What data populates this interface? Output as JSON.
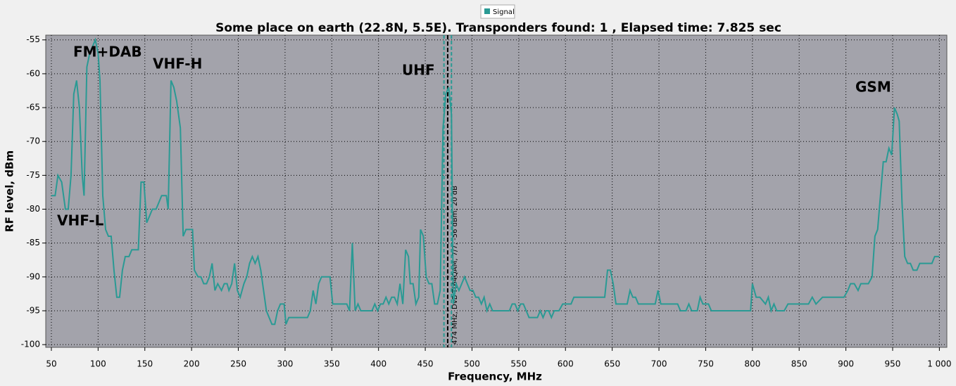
{
  "chart_data": {
    "type": "line",
    "title": "Some place on earth  (22.8N, 5.5E). Transponders found: 1 , Elapsed time: 7.825 sec",
    "x_label": "Frequency, MHz",
    "y_label": "RF level, dBm",
    "xlim": [
      44,
      1008
    ],
    "ylim": [
      -100.4,
      -54.3
    ],
    "xticks": [
      50,
      100,
      150,
      200,
      250,
      300,
      350,
      400,
      450,
      500,
      550,
      600,
      650,
      700,
      750,
      800,
      850,
      900,
      950,
      {
        "value": 1000,
        "label": "1 000"
      }
    ],
    "yticks": [
      -55,
      -60,
      -65,
      -70,
      -75,
      -80,
      -85,
      -90,
      -95,
      -100
    ],
    "grid": true,
    "legend": "top",
    "x": [
      50,
      54,
      57,
      61,
      65,
      68,
      71,
      74,
      77,
      80,
      83,
      85,
      88,
      91,
      94,
      97,
      100,
      102,
      105,
      108,
      111,
      114,
      117,
      120,
      123,
      126,
      129,
      133,
      136,
      139,
      143,
      146,
      149,
      152,
      155,
      158,
      162,
      165,
      168,
      173,
      175,
      178,
      181,
      184,
      188,
      191,
      194,
      197,
      201,
      203,
      207,
      210,
      213,
      216,
      219,
      222,
      225,
      228,
      232,
      235,
      238,
      240,
      243,
      246,
      249,
      252,
      256,
      259,
      262,
      265,
      268,
      271,
      274,
      277,
      280,
      283,
      286,
      289,
      292,
      295,
      299,
      301,
      304,
      308,
      311,
      315,
      320,
      324,
      327,
      330,
      333,
      336,
      339,
      342,
      345,
      348,
      351,
      355,
      359,
      363,
      366,
      369,
      372,
      375,
      378,
      381,
      384,
      387,
      390,
      393,
      396,
      399,
      402,
      405,
      408,
      411,
      414,
      417,
      420,
      423,
      426,
      429,
      432,
      434,
      437,
      440,
      443,
      445,
      448,
      451,
      454,
      457,
      460,
      463,
      466,
      469,
      472,
      475,
      478,
      480,
      483,
      486,
      489,
      492,
      495,
      498,
      501,
      504,
      507,
      510,
      513,
      516,
      519,
      522,
      525,
      528,
      531,
      534,
      537,
      540,
      543,
      546,
      549,
      552,
      555,
      558,
      561,
      564,
      567,
      570,
      573,
      576,
      579,
      582,
      585,
      588,
      590,
      593,
      597,
      601,
      606,
      609,
      612,
      618,
      624,
      630,
      636,
      642,
      645,
      648,
      651,
      654,
      657,
      661,
      666,
      669,
      672,
      675,
      678,
      681,
      684,
      687,
      690,
      693,
      696,
      699,
      702,
      705,
      708,
      711,
      714,
      717,
      720,
      723,
      726,
      729,
      732,
      735,
      738,
      741,
      744,
      747,
      750,
      753,
      756,
      759,
      798,
      800,
      804,
      808,
      814,
      817,
      820,
      823,
      826,
      830,
      834,
      838,
      845,
      853,
      860,
      864,
      868,
      875,
      883,
      890,
      898,
      902,
      905,
      909,
      913,
      916,
      924,
      928,
      931,
      934,
      937,
      940,
      943,
      946,
      949,
      952,
      955,
      957,
      960,
      963,
      966,
      969,
      972,
      976,
      979,
      982,
      986,
      992,
      995,
      1000
    ],
    "series": [
      {
        "name": "Signal",
        "color": "#2a9a94",
        "values": [
          -78,
          -78,
          -75,
          -76,
          -80,
          -80,
          -75,
          -63,
          -61,
          -65,
          -75,
          -78,
          -59,
          -57,
          -56,
          -55,
          -57,
          -61,
          -78,
          -83,
          -84,
          -84,
          -89,
          -93,
          -93,
          -89,
          -87,
          -87,
          -86,
          -86,
          -86,
          -76,
          -76,
          -82,
          -81,
          -80,
          -80,
          -79,
          -78,
          -78,
          -80,
          -61,
          -62,
          -64,
          -68,
          -84,
          -83,
          -83,
          -83,
          -89,
          -90,
          -90,
          -91,
          -91,
          -90,
          -88,
          -92,
          -91,
          -92,
          -91,
          -91,
          -92,
          -91,
          -88,
          -92,
          -93,
          -91,
          -90,
          -88,
          -87,
          -88,
          -87,
          -89,
          -92,
          -95,
          -96,
          -97,
          -97,
          -95,
          -94,
          -94,
          -97,
          -96,
          -96,
          -96,
          -96,
          -96,
          -96,
          -95,
          -92,
          -94,
          -91,
          -90,
          -90,
          -90,
          -90,
          -94,
          -94,
          -94,
          -94,
          -94,
          -95,
          -85,
          -95,
          -94,
          -95,
          -95,
          -95,
          -95,
          -95,
          -94,
          -95,
          -94,
          -94,
          -93,
          -94,
          -93,
          -93,
          -94,
          -91,
          -94,
          -86,
          -87,
          -91,
          -91,
          -94,
          -93,
          -83,
          -84,
          -90,
          -91,
          -91,
          -94,
          -94,
          -92,
          -68,
          -63,
          -62,
          -66,
          -94,
          -91,
          -92,
          -91,
          -90,
          -91,
          -92,
          -92,
          -93,
          -93,
          -94,
          -93,
          -95,
          -94,
          -95,
          -95,
          -95,
          -95,
          -95,
          -95,
          -95,
          -94,
          -94,
          -95,
          -94,
          -94,
          -95,
          -96,
          -96,
          -96,
          -96,
          -95,
          -96,
          -95,
          -95,
          -96,
          -95,
          -95,
          -95,
          -94,
          -94,
          -94,
          -93,
          -93,
          -93,
          -93,
          -93,
          -93,
          -93,
          -89,
          -89,
          -91,
          -94,
          -94,
          -94,
          -94,
          -92,
          -93,
          -93,
          -94,
          -94,
          -94,
          -94,
          -94,
          -94,
          -94,
          -92,
          -94,
          -94,
          -94,
          -94,
          -94,
          -94,
          -94,
          -95,
          -95,
          -95,
          -94,
          -95,
          -95,
          -95,
          -93,
          -94,
          -94,
          -94,
          -95,
          -95,
          -95,
          -91,
          -93,
          -93,
          -94,
          -93,
          -95,
          -94,
          -95,
          -95,
          -95,
          -94,
          -94,
          -94,
          -94,
          -93,
          -94,
          -93,
          -93,
          -93,
          -93,
          -92,
          -91,
          -91,
          -92,
          -91,
          -91,
          -90,
          -84,
          -83,
          -78,
          -73,
          -73,
          -71,
          -72,
          -65,
          -66,
          -67,
          -79,
          -87,
          -88,
          -88,
          -89,
          -89,
          -88,
          -88,
          -88,
          -88,
          -87,
          -87
        ]
      }
    ],
    "marker": {
      "x": 474,
      "band": [
        470,
        478
      ],
      "label": "474 MHz, DvB-T(64QAM, 7/7, -56 dBm, 20 dB"
    },
    "annotations": [
      "FM+DAB",
      "VHF-H",
      "UHF",
      "GSM",
      "VHF-L"
    ]
  }
}
